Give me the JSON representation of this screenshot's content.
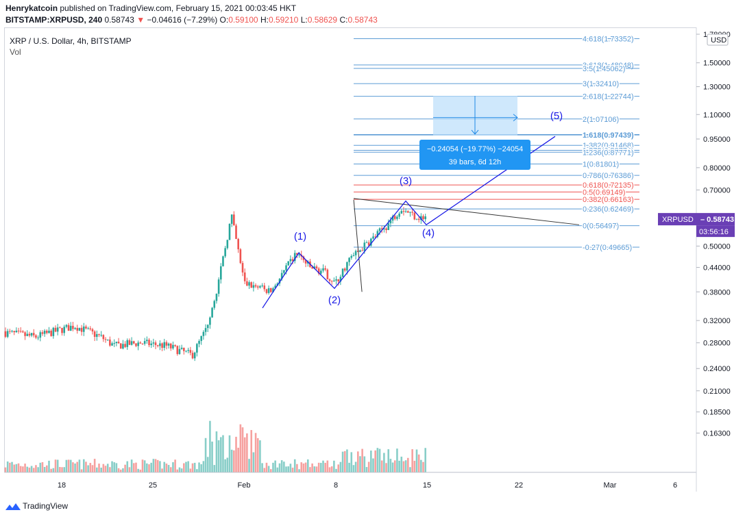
{
  "header": {
    "author": "Henrykatcoin",
    "published": " published on TradingView.com, February 15, 2021 00:03:45 HKT"
  },
  "ohlc": {
    "symbol": "BITSTAMP:XRPUSD, 240",
    "last": "0.58743",
    "change": "−0.04616 (−7.29%)",
    "open_label": "O:",
    "open": "0.59100",
    "high_label": "H:",
    "high": "0.59210",
    "low_label": "L:",
    "low": "0.58629",
    "close_label": "C:",
    "close": "0.58743"
  },
  "legend": {
    "title": "XRP / U.S. Dollar, 4h, BITSTAMP",
    "vol": "Vol"
  },
  "currency_badge": "USD",
  "price_tag": {
    "symbol": "XRPUSD",
    "value": "0.58743",
    "countdown": "03:56:16"
  },
  "footer": {
    "brand": "TradingView"
  },
  "colors": {
    "up": "#26a69a",
    "down": "#ef5350",
    "fib": "#5b9bd5",
    "fib_red": "#ef5350",
    "wave": "#1a1ae6",
    "tag": "#6a3fb5"
  },
  "chart_data": {
    "type": "candlestick",
    "y_scale": "log",
    "ylim": [
      0.145,
      1.78
    ],
    "y_ticks": [
      "1.78000",
      "1.50000",
      "1.30000",
      "1.10000",
      "0.95000",
      "0.80000",
      "0.70000",
      "0.60000",
      "0.50000",
      "0.44000",
      "0.38000",
      "0.32000",
      "0.28000",
      "0.24000",
      "0.21000",
      "0.18500",
      "0.16300"
    ],
    "x_ticks": [
      "18",
      "25",
      "Feb",
      "8",
      "15",
      "22",
      "Mar",
      "6"
    ],
    "fib_levels": [
      {
        "label": "4.618(1.73352)",
        "value": 1.73352
      },
      {
        "label": "3.618(1.48048)",
        "value": 1.48048
      },
      {
        "label": "3.5(1.45062)",
        "value": 1.45062
      },
      {
        "label": "3(1.32410)",
        "value": 1.3241
      },
      {
        "label": "2.618(1.22744)",
        "value": 1.22744
      },
      {
        "label": "2(1.07106)",
        "value": 1.07106
      },
      {
        "label": "1.618(0.97439)",
        "value": 0.97439
      },
      {
        "label": "1.382(0.91468)",
        "value": 0.91468
      },
      {
        "label": "1.272(0.88774)",
        "value": 0.88774
      },
      {
        "label": "1.236(0.87771)",
        "value": 0.87771
      },
      {
        "label": "1(0.81801)",
        "value": 0.81801
      },
      {
        "label": "0.786(0.76386)",
        "value": 0.76386
      },
      {
        "label": "0.618(0.72135)",
        "value": 0.72135
      },
      {
        "label": "0.5(0.69149)",
        "value": 0.69149
      },
      {
        "label": "0.382(0.66163)",
        "value": 0.66163
      },
      {
        "label": "0.236(0.62469)",
        "value": 0.62469
      },
      {
        "label": "0(0.56497)",
        "value": 0.56497
      },
      {
        "label": "-0.27(0.49665)",
        "value": 0.49665
      }
    ],
    "wave_labels": [
      {
        "label": "(1)",
        "value": 0.48
      },
      {
        "label": "(2)",
        "value": 0.385
      },
      {
        "label": "(3)",
        "value": 0.64
      },
      {
        "label": "(4)",
        "value": 0.565
      },
      {
        "label": "(5)",
        "value": 0.97
      }
    ],
    "measure_box": {
      "line1": "−0.24054 (−19.77%) −24054",
      "line2": "39 bars, 6d 12h"
    },
    "price_keypoints": [
      {
        "date": "Jan 13",
        "value": 0.3
      },
      {
        "date": "Jan 16",
        "value": 0.29
      },
      {
        "date": "Jan 19",
        "value": 0.31
      },
      {
        "date": "Jan 21",
        "value": 0.29
      },
      {
        "date": "Jan 22",
        "value": 0.275
      },
      {
        "date": "Jan 24",
        "value": 0.28
      },
      {
        "date": "Jan 26",
        "value": 0.275
      },
      {
        "date": "Jan 28",
        "value": 0.26
      },
      {
        "date": "Jan 29",
        "value": 0.3
      },
      {
        "date": "Jan 30",
        "value": 0.4
      },
      {
        "date": "Jan 31",
        "value": 0.6
      },
      {
        "date": "Feb 1",
        "value": 0.4
      },
      {
        "date": "Feb 3",
        "value": 0.38
      },
      {
        "date": "Feb 5",
        "value": 0.48
      },
      {
        "date": "Feb 6",
        "value": 0.44
      },
      {
        "date": "Feb 7",
        "value": 0.43
      },
      {
        "date": "Feb 8",
        "value": 0.4
      },
      {
        "date": "Feb 9",
        "value": 0.46
      },
      {
        "date": "Feb 11",
        "value": 0.53
      },
      {
        "date": "Feb 12",
        "value": 0.57
      },
      {
        "date": "Feb 13",
        "value": 0.63
      },
      {
        "date": "Feb 14",
        "value": 0.6
      },
      {
        "date": "Feb 15",
        "value": 0.587
      }
    ]
  }
}
